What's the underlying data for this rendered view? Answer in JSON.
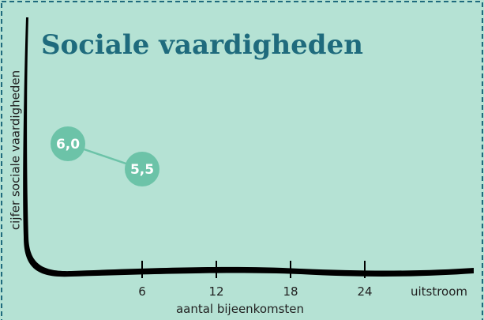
{
  "chart_data": {
    "type": "line",
    "title": "Sociale vaardigheden",
    "x_label": "aantal bijeenkomsten",
    "y_label": "cijfer sociale vaardigheden",
    "x": [
      0,
      6
    ],
    "series": [
      {
        "color": "#6cc3a8",
        "values": [
          6.0,
          5.5
        ],
        "value_labels": [
          "6,0",
          "5,5"
        ]
      }
    ],
    "xlim": [
      -3,
      33
    ],
    "ylim": [
      3.5,
      8.5
    ],
    "xticks": [
      6,
      12,
      18,
      24,
      {
        "value": 30,
        "label": "uitstroom"
      }
    ]
  }
}
